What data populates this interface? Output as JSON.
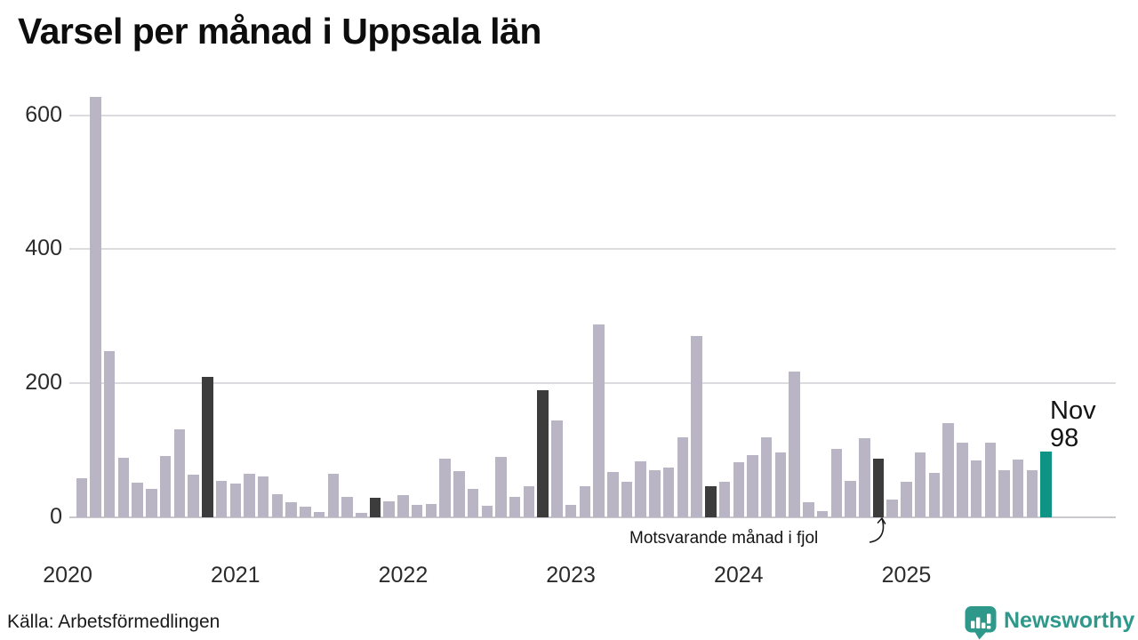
{
  "title": "Varsel per månad i Uppsala län",
  "source": "Källa: Arbetsförmedlingen",
  "brand": {
    "name": "Newsworthy"
  },
  "annotation": {
    "text": "Motsvarande månad i fjol",
    "arrow_target": "2024-11"
  },
  "current_label": {
    "month": "Nov",
    "value": "98"
  },
  "colors": {
    "bar_default": "#b9b5c4",
    "bar_november_dark": "#3c3c3c",
    "bar_current_teal": "#0e9384",
    "gridline": "#dcdce0",
    "baseline": "#c9c9cd",
    "brand_teal": "#2e998b"
  },
  "chart_data": {
    "type": "bar",
    "title": "Varsel per månad i Uppsala län",
    "xlabel": "",
    "ylabel": "",
    "y_ticks": [
      0,
      200,
      400,
      600
    ],
    "ylim": [
      0,
      650
    ],
    "year_ticks": [
      "2020",
      "2021",
      "2022",
      "2023",
      "2024",
      "2025"
    ],
    "legend": "November bars highlighted: dark = previous Novembers, teal = current month (Nov 2025, value 98)",
    "months": [
      {
        "month": "2020-02",
        "value": 59,
        "highlight": "none"
      },
      {
        "month": "2020-03",
        "value": 627,
        "highlight": "none"
      },
      {
        "month": "2020-04",
        "value": 248,
        "highlight": "none"
      },
      {
        "month": "2020-05",
        "value": 89,
        "highlight": "none"
      },
      {
        "month": "2020-06",
        "value": 52,
        "highlight": "none"
      },
      {
        "month": "2020-07",
        "value": 43,
        "highlight": "none"
      },
      {
        "month": "2020-08",
        "value": 92,
        "highlight": "none"
      },
      {
        "month": "2020-09",
        "value": 132,
        "highlight": "none"
      },
      {
        "month": "2020-10",
        "value": 64,
        "highlight": "none"
      },
      {
        "month": "2020-11",
        "value": 210,
        "highlight": "dark"
      },
      {
        "month": "2020-12",
        "value": 55,
        "highlight": "none"
      },
      {
        "month": "2021-01",
        "value": 50,
        "highlight": "none"
      },
      {
        "month": "2021-02",
        "value": 65,
        "highlight": "none"
      },
      {
        "month": "2021-03",
        "value": 61,
        "highlight": "none"
      },
      {
        "month": "2021-04",
        "value": 35,
        "highlight": "none"
      },
      {
        "month": "2021-05",
        "value": 23,
        "highlight": "none"
      },
      {
        "month": "2021-06",
        "value": 16,
        "highlight": "none"
      },
      {
        "month": "2021-07",
        "value": 8,
        "highlight": "none"
      },
      {
        "month": "2021-08",
        "value": 65,
        "highlight": "none"
      },
      {
        "month": "2021-09",
        "value": 31,
        "highlight": "none"
      },
      {
        "month": "2021-10",
        "value": 7,
        "highlight": "none"
      },
      {
        "month": "2021-11",
        "value": 29,
        "highlight": "dark"
      },
      {
        "month": "2021-12",
        "value": 24,
        "highlight": "none"
      },
      {
        "month": "2022-01",
        "value": 33,
        "highlight": "none"
      },
      {
        "month": "2022-02",
        "value": 18,
        "highlight": "none"
      },
      {
        "month": "2022-03",
        "value": 20,
        "highlight": "none"
      },
      {
        "month": "2022-04",
        "value": 87,
        "highlight": "none"
      },
      {
        "month": "2022-05",
        "value": 69,
        "highlight": "none"
      },
      {
        "month": "2022-06",
        "value": 43,
        "highlight": "none"
      },
      {
        "month": "2022-07",
        "value": 17,
        "highlight": "none"
      },
      {
        "month": "2022-08",
        "value": 90,
        "highlight": "none"
      },
      {
        "month": "2022-09",
        "value": 31,
        "highlight": "none"
      },
      {
        "month": "2022-10",
        "value": 46,
        "highlight": "none"
      },
      {
        "month": "2022-11",
        "value": 190,
        "highlight": "dark"
      },
      {
        "month": "2022-12",
        "value": 144,
        "highlight": "none"
      },
      {
        "month": "2023-01",
        "value": 19,
        "highlight": "none"
      },
      {
        "month": "2023-02",
        "value": 46,
        "highlight": "none"
      },
      {
        "month": "2023-03",
        "value": 288,
        "highlight": "none"
      },
      {
        "month": "2023-04",
        "value": 68,
        "highlight": "none"
      },
      {
        "month": "2023-05",
        "value": 53,
        "highlight": "none"
      },
      {
        "month": "2023-06",
        "value": 83,
        "highlight": "none"
      },
      {
        "month": "2023-07",
        "value": 70,
        "highlight": "none"
      },
      {
        "month": "2023-08",
        "value": 75,
        "highlight": "none"
      },
      {
        "month": "2023-09",
        "value": 120,
        "highlight": "none"
      },
      {
        "month": "2023-10",
        "value": 270,
        "highlight": "none"
      },
      {
        "month": "2023-11",
        "value": 46,
        "highlight": "dark"
      },
      {
        "month": "2023-12",
        "value": 53,
        "highlight": "none"
      },
      {
        "month": "2024-01",
        "value": 82,
        "highlight": "none"
      },
      {
        "month": "2024-02",
        "value": 93,
        "highlight": "none"
      },
      {
        "month": "2024-03",
        "value": 120,
        "highlight": "none"
      },
      {
        "month": "2024-04",
        "value": 97,
        "highlight": "none"
      },
      {
        "month": "2024-05",
        "value": 218,
        "highlight": "none"
      },
      {
        "month": "2024-06",
        "value": 22,
        "highlight": "none"
      },
      {
        "month": "2024-07",
        "value": 10,
        "highlight": "none"
      },
      {
        "month": "2024-08",
        "value": 102,
        "highlight": "none"
      },
      {
        "month": "2024-09",
        "value": 55,
        "highlight": "none"
      },
      {
        "month": "2024-10",
        "value": 118,
        "highlight": "none"
      },
      {
        "month": "2024-11",
        "value": 88,
        "highlight": "dark"
      },
      {
        "month": "2024-12",
        "value": 26,
        "highlight": "none"
      },
      {
        "month": "2025-01",
        "value": 53,
        "highlight": "none"
      },
      {
        "month": "2025-02",
        "value": 97,
        "highlight": "none"
      },
      {
        "month": "2025-03",
        "value": 67,
        "highlight": "none"
      },
      {
        "month": "2025-04",
        "value": 140,
        "highlight": "none"
      },
      {
        "month": "2025-05",
        "value": 112,
        "highlight": "none"
      },
      {
        "month": "2025-06",
        "value": 85,
        "highlight": "none"
      },
      {
        "month": "2025-07",
        "value": 112,
        "highlight": "none"
      },
      {
        "month": "2025-08",
        "value": 71,
        "highlight": "none"
      },
      {
        "month": "2025-09",
        "value": 86,
        "highlight": "none"
      },
      {
        "month": "2025-10",
        "value": 70,
        "highlight": "none"
      },
      {
        "month": "2025-11",
        "value": 98,
        "highlight": "current"
      }
    ]
  }
}
